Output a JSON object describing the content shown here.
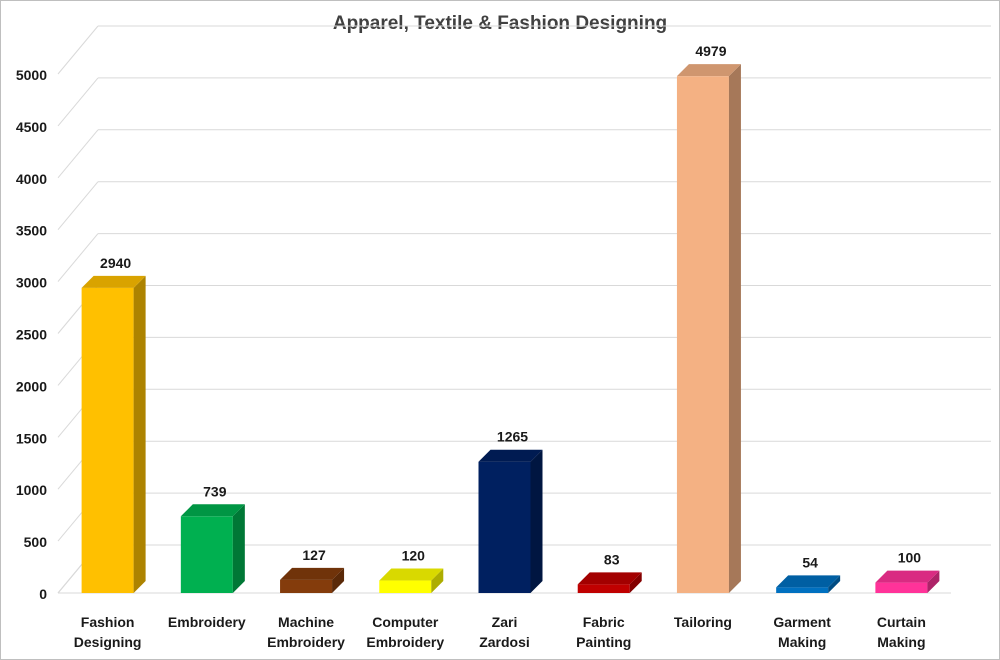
{
  "chart_data": {
    "type": "bar",
    "title": "Apparel, Textile & Fashion Designing",
    "categories": [
      "Fashion Designing",
      "Embroidery",
      "Machine Embroidery",
      "Computer Embroidery",
      "Zari Zardosi",
      "Fabric Painting",
      "Tailoring",
      "Garment Making",
      "Curtain Making"
    ],
    "values": [
      2940,
      739,
      127,
      120,
      1265,
      83,
      4979,
      54,
      100
    ],
    "colors": [
      "#FFC000",
      "#00B050",
      "#843C0C",
      "#FFFF00",
      "#002060",
      "#C00000",
      "#F4B183",
      "#0070C0",
      "#FF3399"
    ],
    "ylim": [
      0,
      5000
    ],
    "yticks": [
      0,
      500,
      1000,
      1500,
      2000,
      2500,
      3000,
      3500,
      4000,
      4500,
      5000
    ],
    "grid": true,
    "legend": "none",
    "xlabel": "",
    "ylabel": ""
  }
}
